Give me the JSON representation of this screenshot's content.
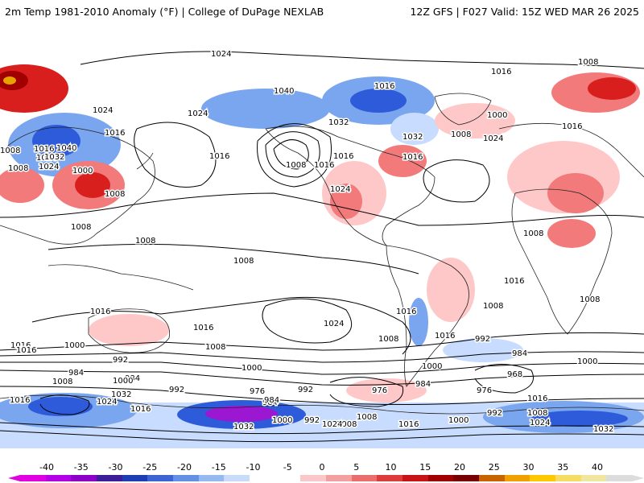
{
  "header": {
    "title": "2m Temp 1981-2010 Anomaly (°F) | College of DuPage NEXLAB",
    "run": "12Z GFS | F027 Valid: 15Z WED MAR 26 2025"
  },
  "colors": {
    "warm_light": "#ffc8c8",
    "warm_mid": "#f27a7a",
    "warm_strong": "#d91e1e",
    "warm_deep": "#a00000",
    "warm_extreme": "#e8a200",
    "cold_light": "#c8dcff",
    "cold_mid": "#7aa5ef",
    "cold_strong": "#2e5bd9",
    "cold_deep": "#1c2aa0",
    "cold_extreme": "#9b17d1",
    "land_outline": "#222222",
    "isobar": "#000000"
  },
  "colorbar": {
    "ticks": [
      "-40",
      "-35",
      "-30",
      "-25",
      "-20",
      "-15",
      "-10",
      "-5",
      "0",
      "5",
      "10",
      "15",
      "20",
      "25",
      "30",
      "35",
      "40"
    ],
    "segments": [
      "#e100e1",
      "#b400e6",
      "#8c00c8",
      "#3c1e96",
      "#1e3cb4",
      "#3c64d2",
      "#6491e6",
      "#96b9f0",
      "#c8dcfa",
      "#ffffff",
      "#ffffff",
      "#fac8c8",
      "#f5a0a0",
      "#eb6e6e",
      "#dc3c3c",
      "#c81414",
      "#a00000",
      "#780000",
      "#c86400",
      "#f0a000",
      "#ffc800",
      "#f5dc64",
      "#f0e6a0",
      "#dcdcdc"
    ]
  },
  "isobar_labels": [
    {
      "text": "1024"
    },
    {
      "text": "1008"
    },
    {
      "text": "1016"
    },
    {
      "text": "1040"
    },
    {
      "text": "1024"
    },
    {
      "text": "1016"
    },
    {
      "text": "1032"
    },
    {
      "text": "1000"
    },
    {
      "text": "1024"
    },
    {
      "text": "1016"
    },
    {
      "text": "1008"
    },
    {
      "text": "1024"
    },
    {
      "text": "1016"
    },
    {
      "text": "1032"
    },
    {
      "text": "1008"
    },
    {
      "text": "1016"
    },
    {
      "text": "1024"
    },
    {
      "text": "1040"
    },
    {
      "text": "1032"
    },
    {
      "text": "1000"
    },
    {
      "text": "1024"
    },
    {
      "text": "1016"
    },
    {
      "text": "1008"
    },
    {
      "text": "1016"
    },
    {
      "text": "1008"
    },
    {
      "text": "1016"
    },
    {
      "text": "1024"
    },
    {
      "text": "1016"
    },
    {
      "text": "1008"
    },
    {
      "text": "1008"
    },
    {
      "text": "1008"
    },
    {
      "text": "1008"
    },
    {
      "text": "1008"
    },
    {
      "text": "1016"
    },
    {
      "text": "1016"
    },
    {
      "text": "1016"
    },
    {
      "text": "1024"
    },
    {
      "text": "1016"
    },
    {
      "text": "1016"
    },
    {
      "text": "1008"
    },
    {
      "text": "1016"
    },
    {
      "text": "1016"
    },
    {
      "text": "1008"
    },
    {
      "text": "1008"
    },
    {
      "text": "1000"
    },
    {
      "text": "992"
    },
    {
      "text": "1008"
    },
    {
      "text": "1000"
    },
    {
      "text": "1000"
    },
    {
      "text": "992"
    },
    {
      "text": "984"
    },
    {
      "text": "1000"
    },
    {
      "text": "984"
    },
    {
      "text": "968"
    },
    {
      "text": "1008"
    },
    {
      "text": "984"
    },
    {
      "text": "1000"
    },
    {
      "text": "984"
    },
    {
      "text": "992"
    },
    {
      "text": "976"
    },
    {
      "text": "992"
    },
    {
      "text": "976"
    },
    {
      "text": "984"
    },
    {
      "text": "976"
    },
    {
      "text": "1008"
    },
    {
      "text": "1032"
    },
    {
      "text": "1024"
    },
    {
      "text": "1016"
    },
    {
      "text": "984"
    },
    {
      "text": "1000"
    },
    {
      "text": "992"
    },
    {
      "text": "1008"
    },
    {
      "text": "1016"
    },
    {
      "text": "1000"
    },
    {
      "text": "992"
    },
    {
      "text": "1016"
    },
    {
      "text": "1008"
    },
    {
      "text": "1024"
    },
    {
      "text": "1032"
    },
    {
      "text": "1024"
    },
    {
      "text": "1032"
    },
    {
      "text": "1016"
    }
  ]
}
